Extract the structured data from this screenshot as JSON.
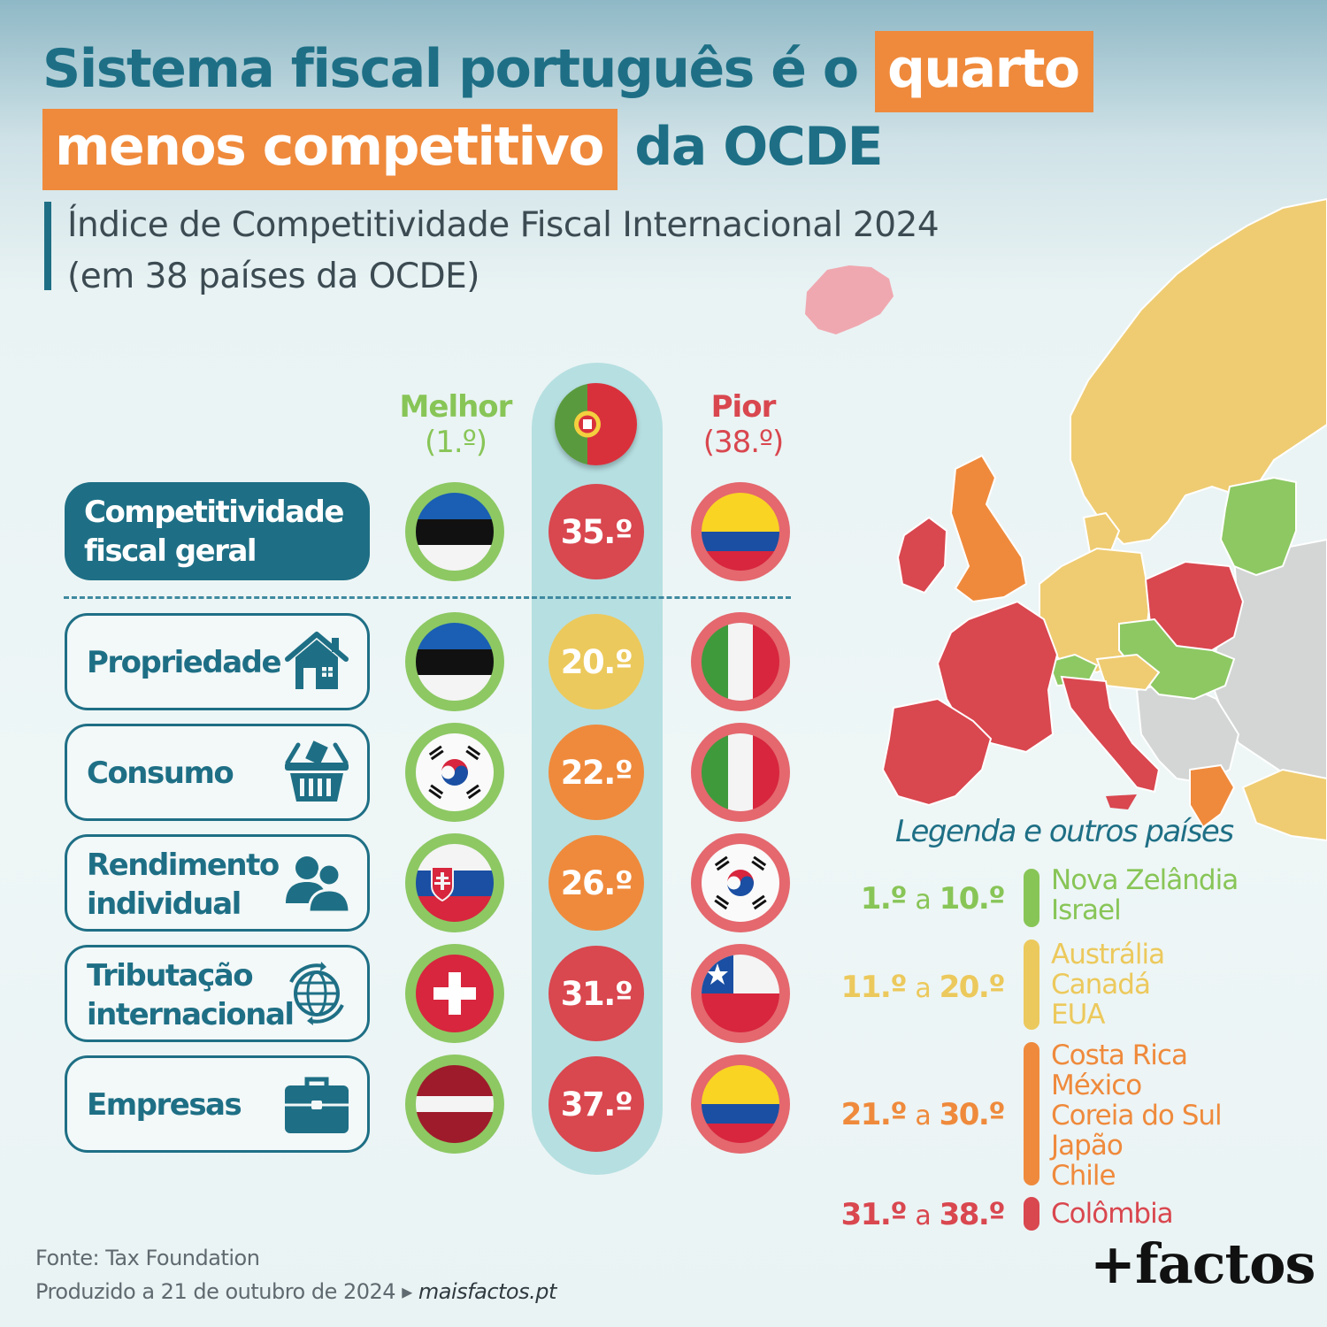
{
  "title": {
    "part1": "Sistema fiscal português é o",
    "highlight1": "quarto",
    "highlight2": "menos competitivo",
    "part2": "da OCDE"
  },
  "subtitle": {
    "line1": "Índice de Competitividade Fiscal Internacional 2024",
    "line2": "(em 38 países da OCDE)"
  },
  "columns": {
    "best_label": "Melhor",
    "best_rank": "(1.º)",
    "worst_label": "Pior",
    "worst_rank": "(38.º)",
    "portugal_flag": "portugal-flag"
  },
  "rows": [
    {
      "category": [
        "Competitividade",
        "fiscal geral"
      ],
      "best": "estonia",
      "portugal_rank": "35.º",
      "worst": "colombia",
      "rank_color": "#d9474f"
    },
    {
      "category": [
        "Propriedade"
      ],
      "icon": "house-icon",
      "best": "estonia",
      "portugal_rank": "20.º",
      "worst": "italy",
      "rank_color": "#ecc95c"
    },
    {
      "category": [
        "Consumo"
      ],
      "icon": "shopping-basket-icon",
      "best": "south-korea",
      "portugal_rank": "22.º",
      "worst": "italy",
      "rank_color": "#ef8a3c"
    },
    {
      "category": [
        "Rendimento",
        "individual"
      ],
      "icon": "people-icon",
      "best": "slovakia",
      "portugal_rank": "26.º",
      "worst": "south-korea",
      "rank_color": "#ef8a3c"
    },
    {
      "category": [
        "Tributação",
        "internacional"
      ],
      "icon": "globe-icon",
      "best": "switzerland",
      "portugal_rank": "31.º",
      "worst": "chile",
      "rank_color": "#d9474f"
    },
    {
      "category": [
        "Empresas"
      ],
      "icon": "briefcase-icon",
      "best": "latvia",
      "portugal_rank": "37.º",
      "worst": "colombia",
      "rank_color": "#d9474f"
    }
  ],
  "legend": {
    "title": "Legenda e outros países",
    "groups": [
      {
        "from": "1.º",
        "a": "a",
        "to": "10.º",
        "color": "#88c557",
        "countries": [
          "Nova Zelândia",
          "Israel"
        ]
      },
      {
        "from": "11.º",
        "a": "a",
        "to": "20.º",
        "color": "#ecc95c",
        "countries": [
          "Austrália",
          "Canadá",
          "EUA"
        ]
      },
      {
        "from": "21.º",
        "a": "a",
        "to": "30.º",
        "color": "#ef8a3c",
        "countries": [
          "Costa Rica",
          "México",
          "Coreia do Sul",
          "Japão",
          "Chile"
        ]
      },
      {
        "from": "31.º",
        "a": "a",
        "to": "38.º",
        "color": "#d9474f",
        "countries": [
          "Colômbia"
        ]
      }
    ]
  },
  "footer": {
    "source": "Fonte: Tax Foundation",
    "produced": "Produzido a 21 de outubro de 2024",
    "arrow": "▸",
    "site": "maisfactos.pt"
  },
  "brand": "+factos",
  "colors": {
    "teal": "#1e6f85",
    "green": "#88c557",
    "yellow": "#ecc95c",
    "orange": "#ef8a3c",
    "red": "#d9474f",
    "grey": "#d4d6d6"
  }
}
